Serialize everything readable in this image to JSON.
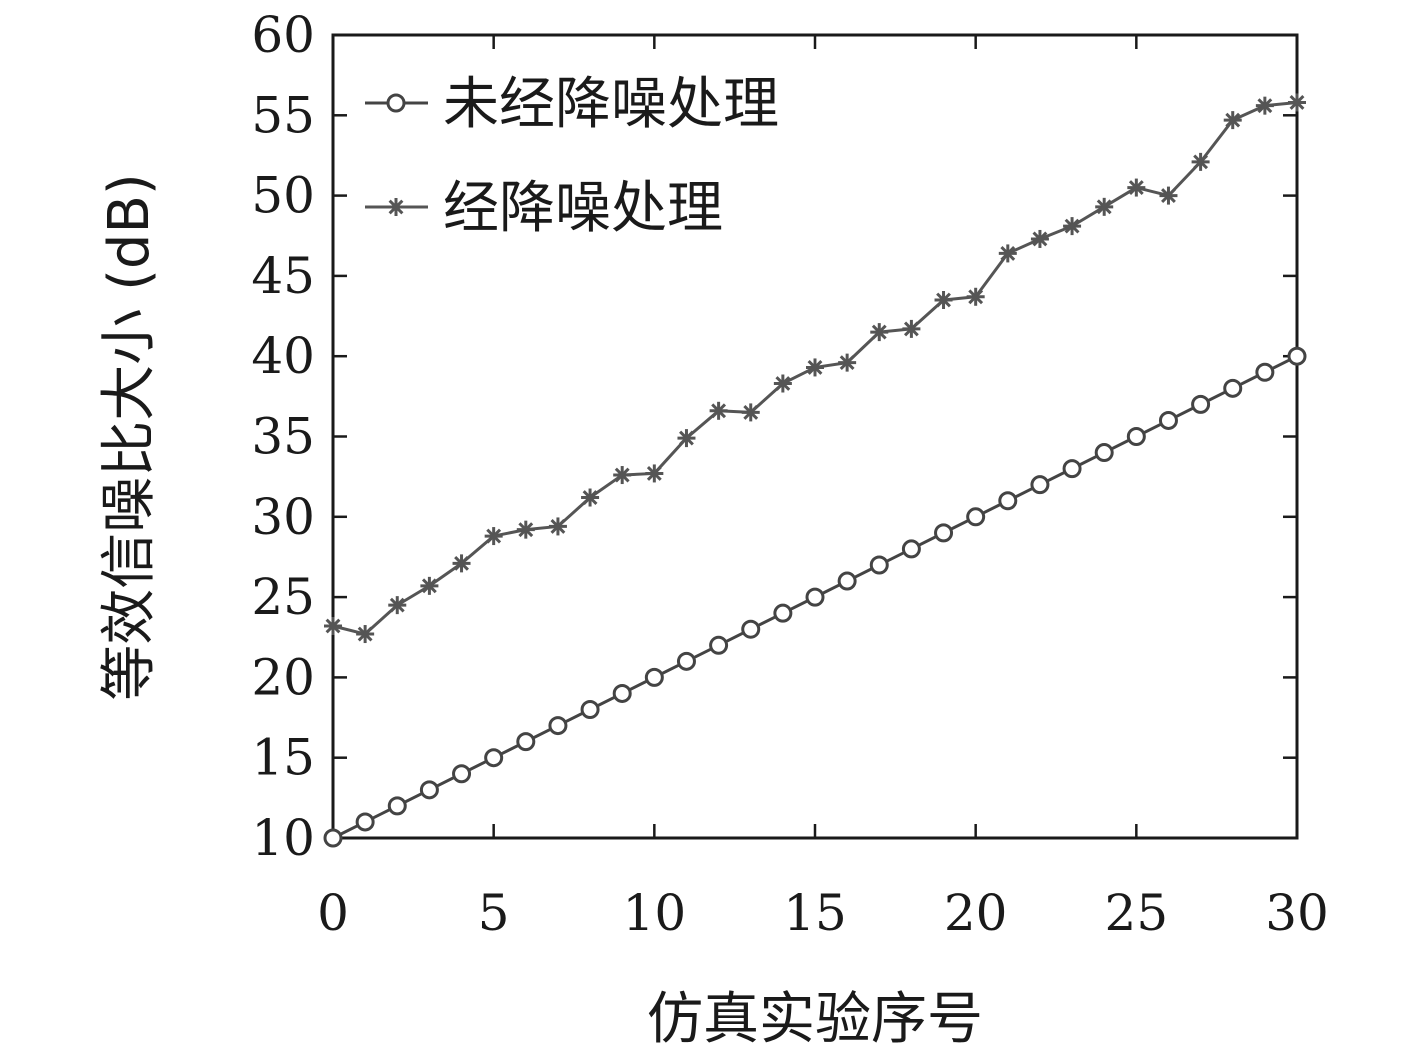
{
  "chart_data": {
    "type": "line",
    "title": "",
    "xlabel": "仿真实验序号",
    "ylabel": "等效信噪比大小 (dB)",
    "xlim": [
      0,
      30
    ],
    "ylim": [
      10,
      60
    ],
    "xticks": [
      0,
      5,
      10,
      15,
      20,
      25,
      30
    ],
    "yticks": [
      10,
      15,
      20,
      25,
      30,
      35,
      40,
      45,
      50,
      55,
      60
    ],
    "grid": false,
    "legend_position": "top-left",
    "x": [
      0,
      1,
      2,
      3,
      4,
      5,
      6,
      7,
      8,
      9,
      10,
      11,
      12,
      13,
      14,
      15,
      16,
      17,
      18,
      19,
      20,
      21,
      22,
      23,
      24,
      25,
      26,
      27,
      28,
      29,
      30
    ],
    "series": [
      {
        "name": "未经降噪处理",
        "marker": "circle",
        "color": "#444444",
        "values": [
          10,
          11,
          12,
          13,
          14,
          15,
          16,
          17,
          18,
          19,
          20,
          21,
          22,
          23,
          24,
          25,
          26,
          27,
          28,
          29,
          30,
          31,
          32,
          33,
          34,
          35,
          36,
          37,
          38,
          39,
          40
        ]
      },
      {
        "name": "经降噪处理",
        "marker": "asterisk",
        "color": "#555555",
        "values": [
          23.2,
          22.7,
          24.5,
          25.7,
          27.1,
          28.8,
          29.2,
          29.4,
          31.2,
          32.6,
          32.7,
          34.9,
          36.6,
          36.5,
          38.3,
          39.3,
          39.6,
          41.5,
          41.7,
          43.5,
          43.7,
          46.4,
          47.3,
          48.1,
          49.3,
          50.5,
          50.0,
          52.1,
          54.7,
          55.6,
          55.8
        ]
      }
    ]
  }
}
